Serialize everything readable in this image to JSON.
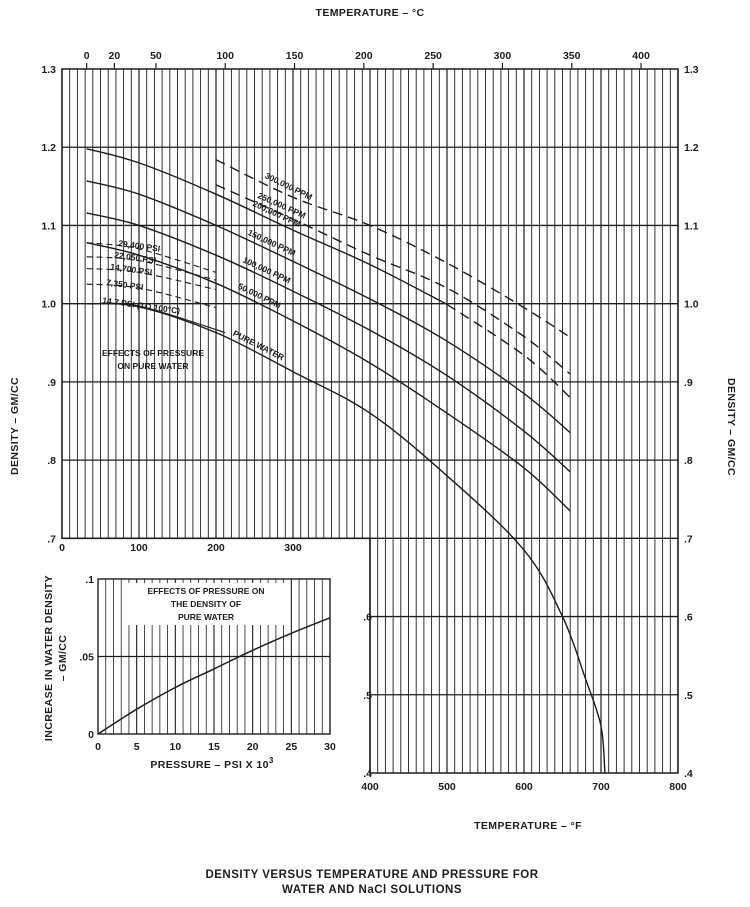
{
  "chart_data": [
    {
      "type": "line",
      "title": "DENSITY VERSUS TEMPERATURE AND PRESSURE FOR WATER AND NaCl SOLUTIONS",
      "xlabel": "TEMPERATURE – °F",
      "x2label": "TEMPERATURE – °C",
      "ylabel": "DENSITY – GM/CC",
      "y2label": "DENSITY – GM/CC",
      "xlim": [
        0,
        800
      ],
      "ylim": [
        0.4,
        1.3
      ],
      "x_ticks": [
        "100",
        "200",
        "300",
        "400",
        "500",
        "600",
        "700",
        "800"
      ],
      "x_origin_tick": "0",
      "x2_ticks": [
        "0",
        "20",
        "50",
        "100",
        "150",
        "200",
        "250",
        "300",
        "350",
        "400"
      ],
      "y_ticks_upper": [
        "1.3",
        "1.2",
        "1.1",
        "1.0",
        ".9",
        ".8",
        ".7"
      ],
      "y_ticks_lower": [
        ".6",
        ".5",
        ".4"
      ],
      "y2_ticks": [
        "1.3",
        "1.2",
        "1.1",
        "1.0",
        ".9",
        ".8",
        ".7",
        ".6",
        ".5",
        ".4"
      ],
      "grid": true,
      "series": [
        {
          "name": "300,000 PPM",
          "style": "dashed",
          "x": [
            200,
            300,
            400,
            500,
            600,
            660
          ],
          "y": [
            1.184,
            1.136,
            1.1,
            1.052,
            0.995,
            0.957
          ]
        },
        {
          "name": "250,000 PPM",
          "style": "dashed",
          "x": [
            200,
            300,
            400,
            500,
            600,
            660
          ],
          "y": [
            1.152,
            1.108,
            1.062,
            1.02,
            0.958,
            0.91
          ]
        },
        {
          "name": "200,000 PPM",
          "style": "solid-to-dashed",
          "x": [
            32,
            100,
            200,
            300,
            400,
            500,
            600,
            660
          ],
          "y": [
            1.198,
            1.18,
            1.14,
            1.094,
            1.05,
            0.999,
            0.934,
            0.88
          ]
        },
        {
          "name": "150,000 PPM",
          "style": "solid",
          "x": [
            32,
            100,
            200,
            300,
            400,
            500,
            600,
            660
          ],
          "y": [
            1.157,
            1.14,
            1.1,
            1.054,
            1.006,
            0.952,
            0.885,
            0.835
          ]
        },
        {
          "name": "100,000 PPM",
          "style": "solid",
          "x": [
            32,
            100,
            200,
            300,
            400,
            500,
            600,
            660
          ],
          "y": [
            1.116,
            1.1,
            1.062,
            1.016,
            0.966,
            0.908,
            0.837,
            0.785
          ]
        },
        {
          "name": "50,000 PPM",
          "style": "solid",
          "x": [
            32,
            100,
            200,
            300,
            400,
            500,
            600,
            660
          ],
          "y": [
            1.078,
            1.062,
            1.026,
            0.978,
            0.924,
            0.86,
            0.79,
            0.735
          ]
        },
        {
          "name": "PURE WATER",
          "style": "solid",
          "x": [
            32,
            100,
            200,
            300,
            400,
            500,
            600,
            650,
            680,
            700,
            705
          ],
          "y": [
            1.0,
            0.996,
            0.963,
            0.913,
            0.86,
            0.78,
            0.685,
            0.6,
            0.52,
            0.46,
            0.4
          ]
        }
      ],
      "pressure_series": [
        {
          "name": "29,400 PSI",
          "x": [
            32,
            100,
            200
          ],
          "y": [
            1.078,
            1.07,
            1.04
          ]
        },
        {
          "name": "22,050 PSI",
          "x": [
            32,
            100,
            200
          ],
          "y": [
            1.06,
            1.055,
            1.03
          ]
        },
        {
          "name": "14,700 PSI",
          "x": [
            32,
            100,
            200
          ],
          "y": [
            1.045,
            1.04,
            1.018
          ]
        },
        {
          "name": "7,350 PSI",
          "x": [
            32,
            100,
            200
          ],
          "y": [
            1.025,
            1.02,
            0.995
          ]
        },
        {
          "name": "14.7 PSI (TO 100°C)",
          "x": [
            32,
            100,
            212
          ],
          "y": [
            1.0,
            0.997,
            0.963
          ]
        }
      ],
      "annotation": "EFFECTS OF PRESSURE ON PURE WATER",
      "color": "#1d1d1d"
    },
    {
      "type": "line",
      "title": "EFFECTS OF PRESSURE ON THE DENSITY OF PURE WATER",
      "xlabel": "PRESSURE – PSI X 10",
      "xlabel_superscript": "3",
      "ylabel": "INCREASE IN WATER DENSITY – GM/CC",
      "xlim": [
        0,
        30
      ],
      "ylim": [
        0,
        0.1
      ],
      "x_ticks": [
        "0",
        "5",
        "10",
        "15",
        "20",
        "25",
        "30"
      ],
      "y_ticks": [
        "0",
        ".05",
        ".1"
      ],
      "grid": true,
      "series": [
        {
          "x": [
            0,
            5,
            10,
            15,
            20,
            25,
            30
          ],
          "y": [
            0,
            0.016,
            0.03,
            0.042,
            0.054,
            0.065,
            0.075
          ]
        }
      ]
    }
  ]
}
